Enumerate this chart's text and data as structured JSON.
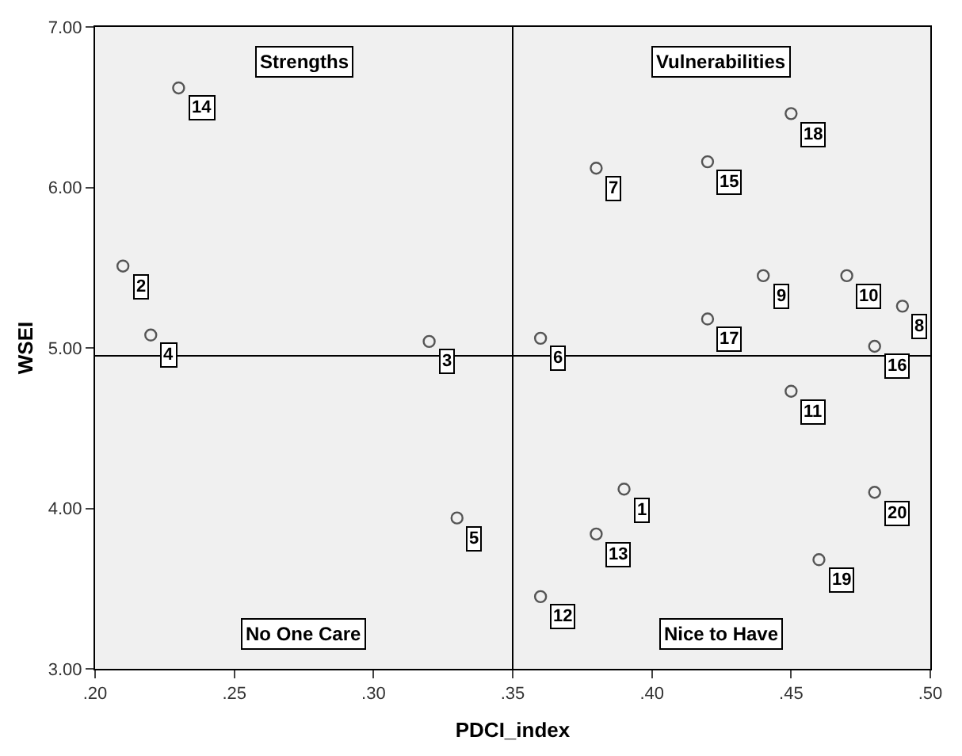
{
  "chart_data": {
    "type": "scatter",
    "xlabel": "PDCI_index",
    "ylabel": "WSEI",
    "x": [
      0.39,
      0.21,
      0.32,
      0.22,
      0.33,
      0.36,
      0.38,
      0.49,
      0.44,
      0.47,
      0.45,
      0.36,
      0.38,
      0.23,
      0.42,
      0.48,
      0.42,
      0.45,
      0.46,
      0.48
    ],
    "values": [
      4.12,
      5.51,
      5.04,
      5.08,
      3.94,
      5.06,
      6.12,
      5.26,
      5.45,
      5.45,
      4.73,
      3.45,
      3.84,
      6.62,
      6.16,
      5.01,
      5.18,
      6.46,
      3.68,
      4.1
    ],
    "color": "#555555",
    "marker": "circle",
    "grid": false,
    "legend": false,
    "xlim": [
      0.2,
      0.5
    ],
    "xticks": [
      {
        "value": 0.2,
        "label": ".20"
      },
      {
        "value": 0.25,
        "label": ".25"
      },
      {
        "value": 0.3,
        "label": ".30"
      },
      {
        "value": 0.35,
        "label": ".35"
      },
      {
        "value": 0.4,
        "label": ".40"
      },
      {
        "value": 0.45,
        "label": ".45"
      },
      {
        "value": 0.5,
        "label": ".50"
      }
    ],
    "ylim": [
      3,
      7
    ],
    "yticks": [
      {
        "value": 3,
        "label": "3.00"
      },
      {
        "value": 4,
        "label": "4.00"
      },
      {
        "value": 5,
        "label": "5.00"
      },
      {
        "value": 6,
        "label": "6.00"
      },
      {
        "value": 7,
        "label": "7.00"
      }
    ],
    "ref_lines": [
      {
        "axis": "x",
        "value": 0.35,
        "color": "#000000"
      },
      {
        "axis": "y",
        "value": 4.95,
        "color": "#000000"
      }
    ],
    "annotations": [
      "Strengths",
      "Vulnerabilities",
      "No One Care",
      "Nice to Have",
      {
        "text": "1",
        "x": 0.39,
        "y": 4.12
      },
      {
        "text": "2",
        "x": 0.21,
        "y": 5.51
      },
      {
        "text": "3",
        "x": 0.32,
        "y": 5.04
      },
      {
        "text": "4",
        "x": 0.22,
        "y": 5.08
      },
      {
        "text": "5",
        "x": 0.33,
        "y": 3.94
      },
      {
        "text": "6",
        "x": 0.36,
        "y": 5.06
      },
      {
        "text": "7",
        "x": 0.38,
        "y": 6.12
      },
      {
        "text": "8",
        "x": 0.49,
        "y": 5.26
      },
      {
        "text": "9",
        "x": 0.44,
        "y": 5.45
      },
      {
        "text": "10",
        "x": 0.47,
        "y": 5.45
      },
      {
        "text": "11",
        "x": 0.45,
        "y": 4.73
      },
      {
        "text": "12",
        "x": 0.36,
        "y": 3.45
      },
      {
        "text": "13",
        "x": 0.38,
        "y": 3.84
      },
      {
        "text": "14",
        "x": 0.23,
        "y": 6.62
      },
      {
        "text": "15",
        "x": 0.42,
        "y": 6.16
      },
      {
        "text": "16",
        "x": 0.48,
        "y": 5.01
      },
      {
        "text": "17",
        "x": 0.42,
        "y": 5.18
      },
      {
        "text": "18",
        "x": 0.45,
        "y": 6.46
      },
      {
        "text": "19",
        "x": 0.46,
        "y": 3.68
      },
      {
        "text": "20",
        "x": 0.48,
        "y": 4.1
      }
    ]
  }
}
